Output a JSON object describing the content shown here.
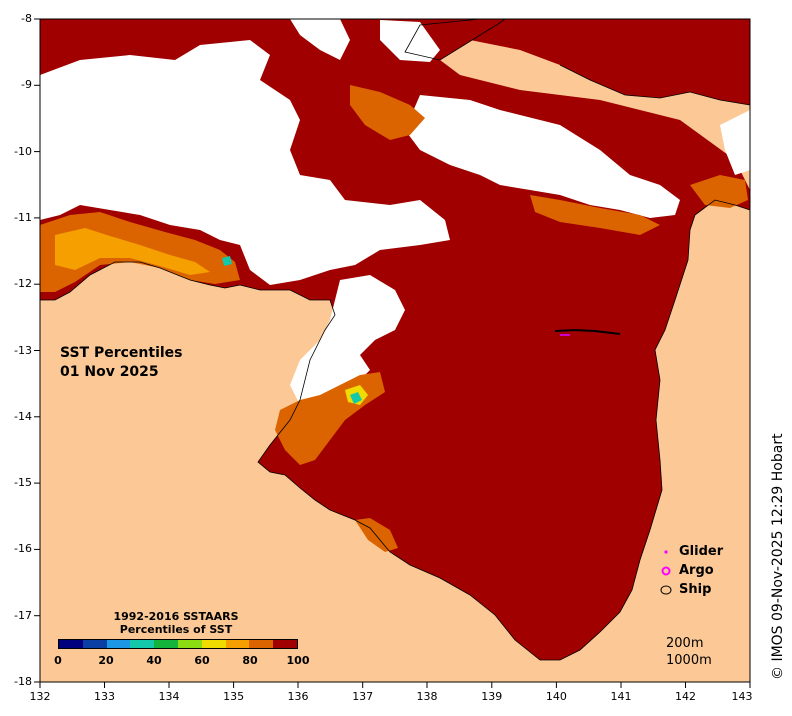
{
  "map": {
    "title_line1": "SST Percentiles",
    "title_line2": "01 Nov 2025",
    "credit": "© IMOS 09-Nov-2025 12:29 Hobart",
    "colors": {
      "sea": "#a00000",
      "land": "#fcc996",
      "no_data": "#ffffff"
    },
    "x_ticks": [
      "132",
      "133",
      "134",
      "135",
      "136",
      "137",
      "138",
      "139",
      "140",
      "141",
      "142",
      "143"
    ],
    "y_ticks": [
      "-8",
      "-9",
      "-10",
      "-11",
      "-12",
      "-13",
      "-14",
      "-15",
      "-16",
      "-17",
      "-18"
    ]
  },
  "legend": {
    "title_line1": "1992-2016 SSTAARS",
    "title_line2": "Percentiles of SST",
    "colors": [
      "#00007f",
      "#0a3fa6",
      "#1e96e6",
      "#14c8aa",
      "#14b43c",
      "#8cdc14",
      "#f0dc00",
      "#f5a000",
      "#dc6400",
      "#a00000"
    ],
    "labels": [
      "0",
      "20",
      "40",
      "60",
      "80",
      "100"
    ]
  },
  "observations": {
    "glider": "Glider",
    "argo": "Argo",
    "ship": "Ship"
  },
  "depth_contours": {
    "c200": "200m",
    "c1000": "1000m"
  }
}
